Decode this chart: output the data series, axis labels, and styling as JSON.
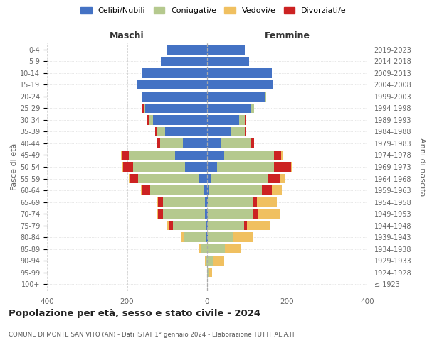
{
  "age_groups": [
    "100+",
    "95-99",
    "90-94",
    "85-89",
    "80-84",
    "75-79",
    "70-74",
    "65-69",
    "60-64",
    "55-59",
    "50-54",
    "45-49",
    "40-44",
    "35-39",
    "30-34",
    "25-29",
    "20-24",
    "15-19",
    "10-14",
    "5-9",
    "0-4"
  ],
  "birth_years": [
    "≤ 1923",
    "1924-1928",
    "1929-1933",
    "1934-1938",
    "1939-1943",
    "1944-1948",
    "1949-1953",
    "1954-1958",
    "1959-1963",
    "1964-1968",
    "1969-1973",
    "1974-1978",
    "1979-1983",
    "1984-1988",
    "1989-1993",
    "1994-1998",
    "1999-2003",
    "2004-2008",
    "2009-2013",
    "2014-2018",
    "2019-2023"
  ],
  "males": {
    "celibi": [
      0,
      0,
      0,
      0,
      2,
      4,
      5,
      5,
      8,
      22,
      55,
      80,
      60,
      105,
      135,
      155,
      162,
      175,
      162,
      115,
      100
    ],
    "coniugati": [
      0,
      0,
      4,
      15,
      55,
      82,
      105,
      105,
      135,
      150,
      130,
      115,
      58,
      20,
      10,
      4,
      0,
      0,
      0,
      0,
      0
    ],
    "vedovi": [
      0,
      0,
      2,
      5,
      5,
      5,
      5,
      5,
      2,
      2,
      2,
      2,
      0,
      0,
      0,
      2,
      0,
      0,
      0,
      0,
      0
    ],
    "divorziati": [
      0,
      0,
      0,
      0,
      2,
      8,
      12,
      12,
      20,
      22,
      25,
      18,
      8,
      5,
      5,
      2,
      0,
      0,
      0,
      0,
      0
    ]
  },
  "females": {
    "nubili": [
      0,
      0,
      0,
      0,
      2,
      2,
      2,
      2,
      5,
      10,
      25,
      42,
      35,
      60,
      80,
      110,
      145,
      165,
      162,
      105,
      95
    ],
    "coniugate": [
      0,
      4,
      14,
      44,
      62,
      90,
      112,
      112,
      132,
      142,
      142,
      125,
      75,
      35,
      15,
      8,
      2,
      0,
      0,
      0,
      0
    ],
    "vedove": [
      0,
      8,
      28,
      40,
      50,
      58,
      55,
      50,
      25,
      12,
      5,
      5,
      0,
      0,
      0,
      0,
      0,
      0,
      0,
      0,
      0
    ],
    "divorziate": [
      0,
      0,
      0,
      0,
      2,
      8,
      12,
      10,
      25,
      30,
      42,
      18,
      8,
      2,
      2,
      0,
      0,
      0,
      0,
      0,
      0
    ]
  },
  "colors": {
    "celibi": "#4472c4",
    "coniugati": "#b5c98e",
    "vedovi": "#f0c060",
    "divorziati": "#cc2222"
  },
  "xlim": 400,
  "title": "Popolazione per età, sesso e stato civile - 2024",
  "subtitle": "COMUNE DI MONTE SAN VITO (AN) - Dati ISTAT 1° gennaio 2024 - Elaborazione TUTTITALIA.IT",
  "xlabel_left": "Maschi",
  "xlabel_right": "Femmine",
  "ylabel_left": "Fasce di età",
  "ylabel_right": "Anni di nascita",
  "legend_labels": [
    "Celibi/Nubili",
    "Coniugati/e",
    "Vedovi/e",
    "Divorziati/e"
  ],
  "bg_color": "#ffffff",
  "grid_color": "#cccccc"
}
